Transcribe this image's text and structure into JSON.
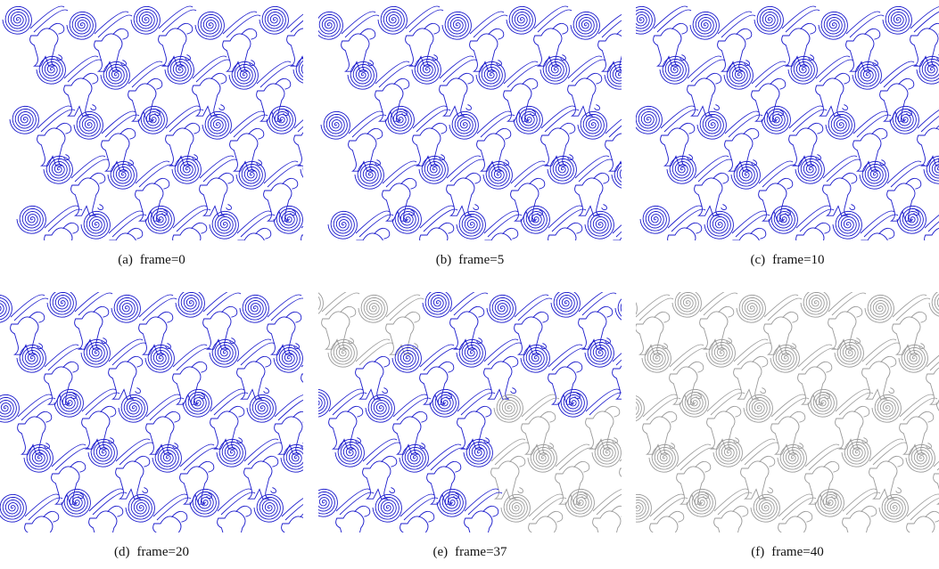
{
  "figure": {
    "panels": [
      {
        "label": "(a)",
        "caption": "frame=0"
      },
      {
        "label": "(b)",
        "caption": "frame=5"
      },
      {
        "label": "(c)",
        "caption": "frame=10"
      },
      {
        "label": "(d)",
        "caption": "frame=20"
      },
      {
        "label": "(e)",
        "caption": "frame=37"
      },
      {
        "label": "(f)",
        "caption": "frame=40"
      }
    ]
  }
}
